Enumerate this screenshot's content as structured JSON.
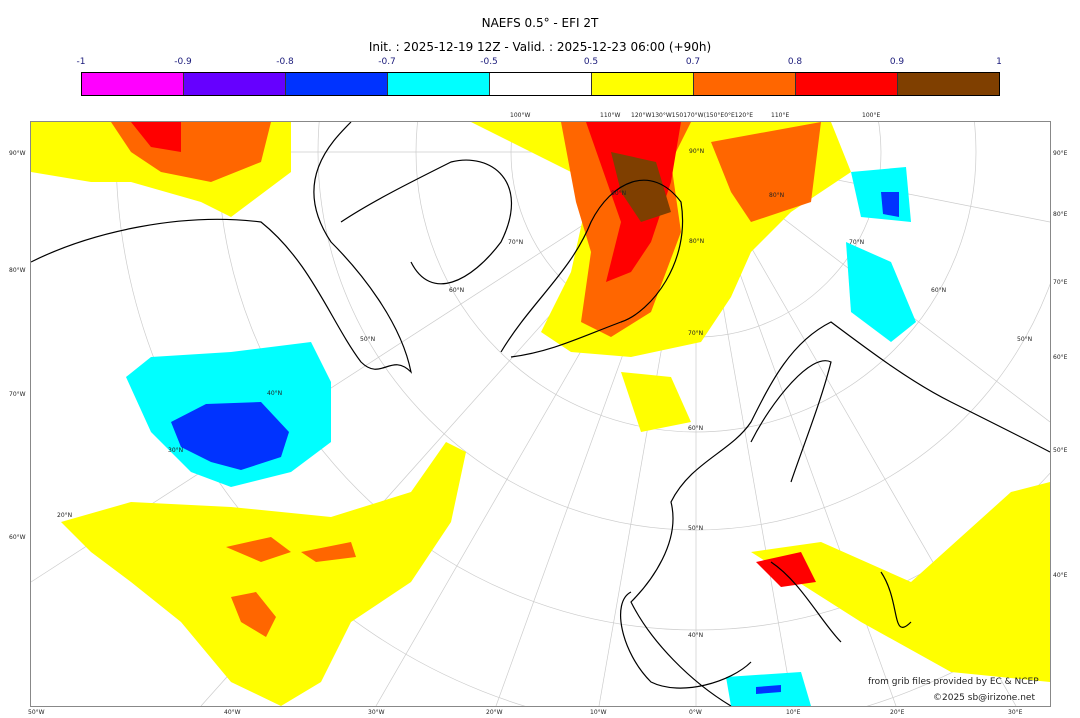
{
  "title": "NAEFS 0.5° - EFI 2T",
  "subtitle": "Init. : 2025-12-19 12Z - Valid. : 2025-12-23 06:00 (+90h)",
  "colorbar": {
    "ticks": [
      "-1",
      "-0.9",
      "-0.8",
      "-0.7",
      "-0.5",
      "0.5",
      "0.7",
      "0.8",
      "0.9",
      "1"
    ],
    "colors": [
      "#ff00ff",
      "#6600ff",
      "#0033ff",
      "#00ffff",
      "#ffffff",
      "#ffff00",
      "#ff6600",
      "#ff0000",
      "#7f3f00"
    ]
  },
  "map": {
    "left_labels": [
      "90°W",
      "80°W",
      "70°W",
      "60°W"
    ],
    "right_labels": [
      "90°E",
      "80°E",
      "70°E",
      "60°E",
      "50°E",
      "40°E"
    ],
    "bottom_labels": [
      "50°W",
      "40°W",
      "30°W",
      "20°W",
      "10°W",
      "0°W",
      "10°E",
      "20°E",
      "30°E"
    ],
    "top_labels": [
      "100°W",
      "110°W",
      "120°W130°W150170°W(150°E0°E120°E",
      "110°E",
      "100°E"
    ],
    "lat_labels": [
      "90°N",
      "80°N",
      "80°N",
      "80°N",
      "70°N",
      "70°N",
      "70°N",
      "60°N",
      "60°N",
      "60°N",
      "50°N",
      "50°N",
      "50°N",
      "40°N",
      "40°N",
      "30°N",
      "20°N"
    ]
  },
  "credits": {
    "source": "from grib files provided by EC & NCEP",
    "copyright": "©2025 sb@irizone.net"
  }
}
